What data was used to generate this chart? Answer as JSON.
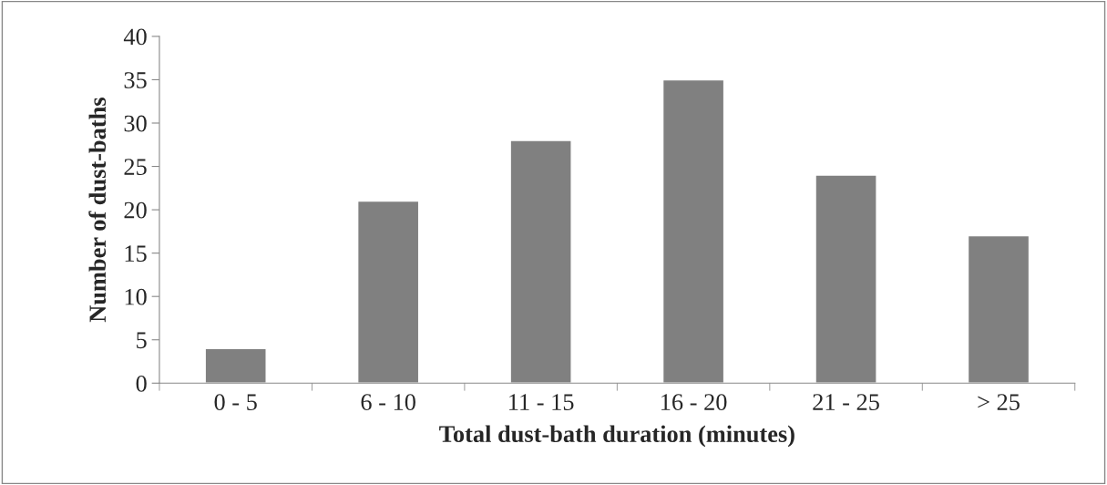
{
  "chart_data": {
    "type": "bar",
    "xlabel": "Total dust-bath duration (minutes)",
    "ylabel": "Number of dust-baths",
    "categories": [
      "0 - 5",
      "6 - 10",
      "11 - 15",
      "16 - 20",
      "21 - 25",
      "> 25"
    ],
    "values": [
      4,
      21,
      28,
      35,
      24,
      17
    ],
    "color": "#808080",
    "ylim": [
      0,
      40
    ],
    "yticks": [
      0,
      5,
      10,
      15,
      20,
      25,
      30,
      35,
      40
    ],
    "grid": false,
    "legend": false
  }
}
